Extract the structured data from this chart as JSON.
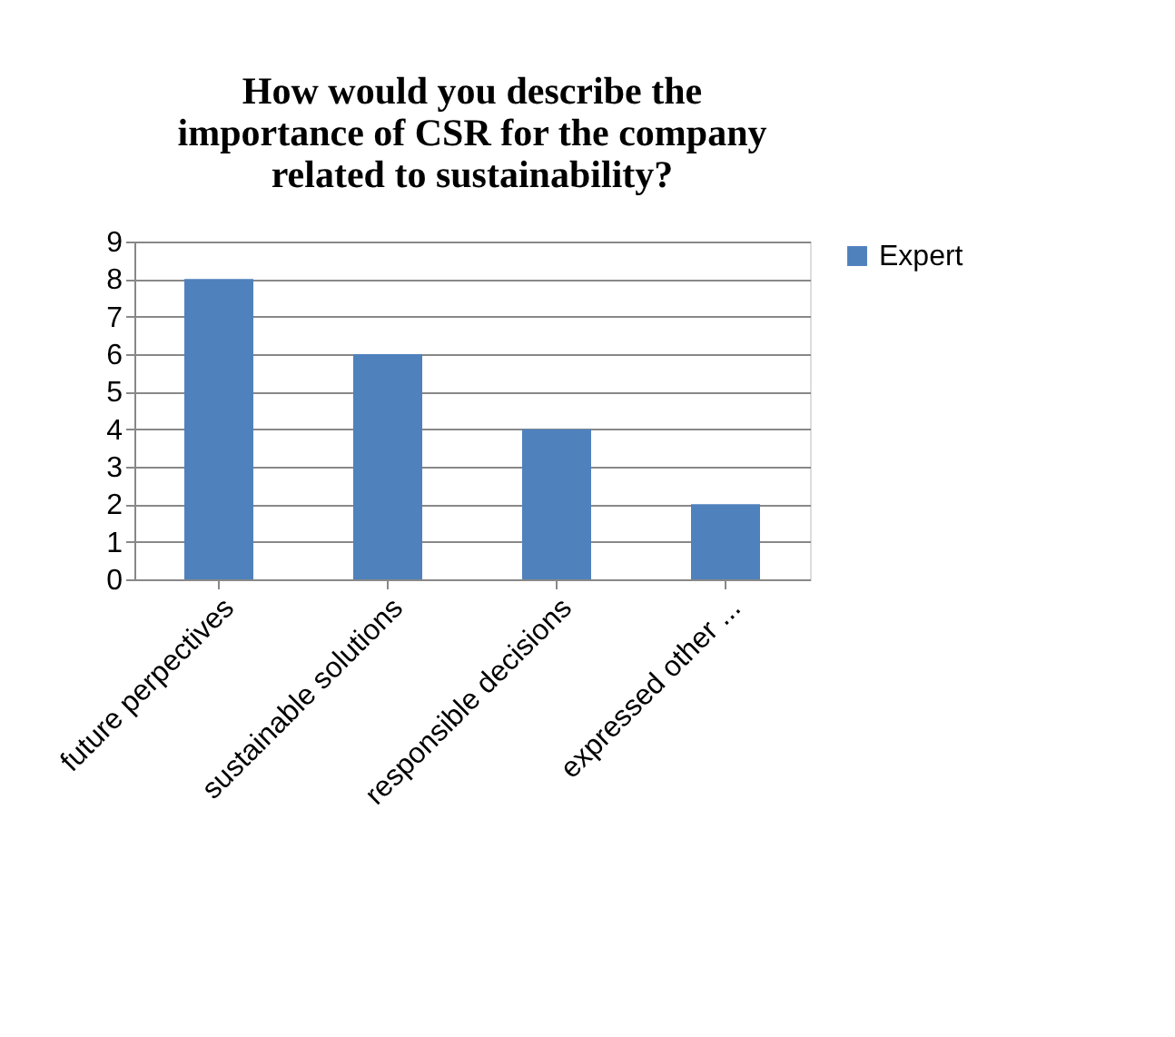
{
  "chart_data": {
    "type": "bar",
    "title": "How would you describe the importance of CSR for the company related to sustainability?",
    "categories": [
      "future perpectives",
      "sustainable solutions",
      "responsible decisions",
      "expressed other ..."
    ],
    "series": [
      {
        "name": "Expert",
        "color": "#4f81bd",
        "values": [
          8,
          6,
          4,
          2
        ]
      }
    ],
    "ylim": [
      0,
      9
    ],
    "yticks": [
      0,
      1,
      2,
      3,
      4,
      5,
      6,
      7,
      8,
      9
    ],
    "grid": "y",
    "legend": "right"
  }
}
